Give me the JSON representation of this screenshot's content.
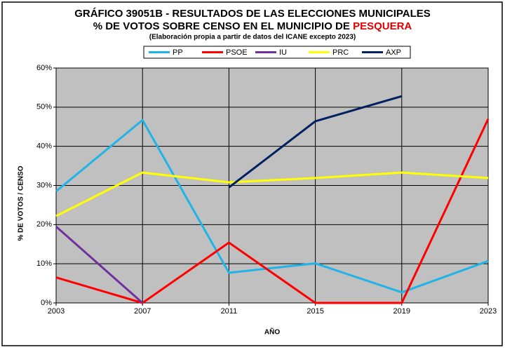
{
  "chart_data": {
    "type": "line",
    "title": "GRÁFICO 39051B - RESULTADOS DE LAS ELECCIONES MUNICIPALES",
    "title_line2": "% DE VOTOS SOBRE CENSO EN EL MUNICIPIO DE",
    "title_highlight": "PESQUERA",
    "subtitle": "(Elaboración propia a partir de datos del ICANE excepto 2023)",
    "x_label": "AÑO",
    "y_label": "% DE VOTOS / CENSO",
    "x": [
      2003,
      2007,
      2011,
      2015,
      2019,
      2023
    ],
    "xlim": [
      2003,
      2023
    ],
    "xticks": [
      2003,
      2007,
      2011,
      2015,
      2019,
      2023
    ],
    "ylim": [
      0,
      60
    ],
    "yticks": [
      {
        "value": 0,
        "label": "0%"
      },
      {
        "value": 10,
        "label": "10%"
      },
      {
        "value": 20,
        "label": "20%"
      },
      {
        "value": 30,
        "label": "30%"
      },
      {
        "value": 40,
        "label": "40%"
      },
      {
        "value": 50,
        "label": "50%"
      },
      {
        "value": 60,
        "label": "60%"
      }
    ],
    "grid": true,
    "legend": "top",
    "series": [
      {
        "name": "PP",
        "color": "#1fb4e8",
        "values": [
          28.5,
          46.7,
          7.7,
          10.1,
          2.7,
          10.7
        ]
      },
      {
        "name": "PSOE",
        "color": "#ff0000",
        "values": [
          6.5,
          0,
          15.4,
          0,
          0,
          47
        ]
      },
      {
        "name": "IU",
        "color": "#7030a0",
        "values": [
          19.5,
          0,
          null,
          null,
          null,
          null
        ]
      },
      {
        "name": "PRC",
        "color": "#ffff00",
        "values": [
          22.2,
          33.3,
          30.8,
          31.9,
          33.3,
          31.9
        ]
      },
      {
        "name": "AXP",
        "color": "#002060",
        "values": [
          null,
          null,
          29.5,
          46.4,
          52.8,
          null
        ]
      }
    ]
  }
}
